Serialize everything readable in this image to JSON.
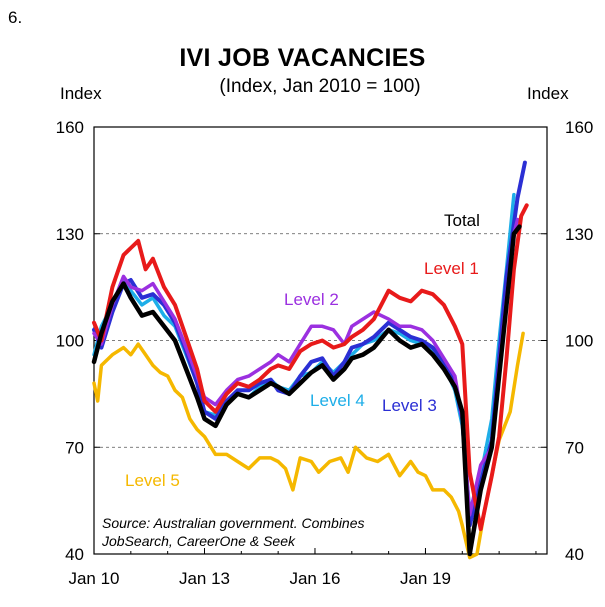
{
  "page": {
    "number": "6."
  },
  "chart_data": {
    "type": "line",
    "title": "IVI JOB VACANCIES",
    "subtitle": "(Index, Jan 2010 = 100)",
    "ylabel_left": "Index",
    "ylabel_right": "Index",
    "ylim": [
      40,
      160
    ],
    "yticks": [
      40,
      70,
      100,
      130,
      160
    ],
    "xlim": [
      2010.0,
      2022.3
    ],
    "xticks": [
      {
        "label": "Jan 10",
        "value": 2010
      },
      {
        "label": "Jan 13",
        "value": 2013
      },
      {
        "label": "Jan 16",
        "value": 2016
      },
      {
        "label": "Jan 19",
        "value": 2019
      }
    ],
    "source": [
      "Source: Australian government. Combines",
      "JobSearch, CareerOne & Seek"
    ],
    "series": [
      {
        "name": "Level 5",
        "label": "Level 5",
        "color": "#f5b800",
        "width": 3.5,
        "points": [
          [
            2010.0,
            88
          ],
          [
            2010.1,
            83
          ],
          [
            2010.2,
            93
          ],
          [
            2010.5,
            96
          ],
          [
            2010.8,
            98
          ],
          [
            2011.0,
            96
          ],
          [
            2011.2,
            99
          ],
          [
            2011.4,
            96
          ],
          [
            2011.6,
            93
          ],
          [
            2011.8,
            91
          ],
          [
            2012.0,
            90
          ],
          [
            2012.2,
            86
          ],
          [
            2012.4,
            84
          ],
          [
            2012.6,
            78
          ],
          [
            2012.8,
            75
          ],
          [
            2013.0,
            73
          ],
          [
            2013.3,
            68
          ],
          [
            2013.6,
            68
          ],
          [
            2013.9,
            66
          ],
          [
            2014.2,
            64
          ],
          [
            2014.5,
            67
          ],
          [
            2014.8,
            67
          ],
          [
            2015.0,
            66
          ],
          [
            2015.2,
            64
          ],
          [
            2015.4,
            58
          ],
          [
            2015.6,
            67
          ],
          [
            2015.9,
            66
          ],
          [
            2016.1,
            63
          ],
          [
            2016.4,
            66
          ],
          [
            2016.7,
            67
          ],
          [
            2016.9,
            63
          ],
          [
            2017.1,
            70
          ],
          [
            2017.4,
            67
          ],
          [
            2017.7,
            66
          ],
          [
            2018.0,
            68
          ],
          [
            2018.3,
            62
          ],
          [
            2018.6,
            66
          ],
          [
            2018.8,
            63
          ],
          [
            2019.0,
            62
          ],
          [
            2019.2,
            58
          ],
          [
            2019.5,
            58
          ],
          [
            2019.7,
            56
          ],
          [
            2019.9,
            52
          ],
          [
            2020.0,
            48
          ],
          [
            2020.2,
            39
          ],
          [
            2020.4,
            40
          ],
          [
            2020.6,
            52
          ],
          [
            2020.8,
            62
          ],
          [
            2021.0,
            72
          ],
          [
            2021.3,
            80
          ],
          [
            2021.5,
            93
          ],
          [
            2021.65,
            102
          ]
        ]
      },
      {
        "name": "Level 4",
        "label": "Level 4",
        "color": "#1eaee8",
        "width": 3.5,
        "points": [
          [
            2010.0,
            96
          ],
          [
            2010.2,
            104
          ],
          [
            2010.5,
            110
          ],
          [
            2010.8,
            117
          ],
          [
            2011.0,
            114
          ],
          [
            2011.3,
            110
          ],
          [
            2011.6,
            112
          ],
          [
            2011.9,
            107
          ],
          [
            2012.2,
            104
          ],
          [
            2012.5,
            96
          ],
          [
            2012.8,
            88
          ],
          [
            2013.0,
            80
          ],
          [
            2013.3,
            79
          ],
          [
            2013.6,
            83
          ],
          [
            2013.9,
            85
          ],
          [
            2014.2,
            84
          ],
          [
            2014.5,
            87
          ],
          [
            2014.8,
            89
          ],
          [
            2015.0,
            87
          ],
          [
            2015.3,
            86
          ],
          [
            2015.6,
            90
          ],
          [
            2015.9,
            91
          ],
          [
            2016.2,
            94
          ],
          [
            2016.5,
            91
          ],
          [
            2016.8,
            94
          ],
          [
            2017.0,
            96
          ],
          [
            2017.3,
            99
          ],
          [
            2017.6,
            100
          ],
          [
            2018.0,
            103
          ],
          [
            2018.3,
            102
          ],
          [
            2018.6,
            100
          ],
          [
            2018.9,
            99
          ],
          [
            2019.2,
            97
          ],
          [
            2019.5,
            93
          ],
          [
            2019.8,
            86
          ],
          [
            2020.0,
            76
          ],
          [
            2020.2,
            52
          ],
          [
            2020.5,
            62
          ],
          [
            2020.8,
            78
          ],
          [
            2021.0,
            100
          ],
          [
            2021.2,
            120
          ],
          [
            2021.4,
            141
          ]
        ]
      },
      {
        "name": "Level 3",
        "label": "Level 3",
        "color": "#2b2fd4",
        "width": 4,
        "points": [
          [
            2010.0,
            103
          ],
          [
            2010.2,
            98
          ],
          [
            2010.5,
            108
          ],
          [
            2010.8,
            116
          ],
          [
            2011.0,
            117
          ],
          [
            2011.3,
            112
          ],
          [
            2011.6,
            113
          ],
          [
            2011.9,
            110
          ],
          [
            2012.2,
            105
          ],
          [
            2012.5,
            97
          ],
          [
            2012.8,
            88
          ],
          [
            2013.0,
            80
          ],
          [
            2013.3,
            78
          ],
          [
            2013.6,
            83
          ],
          [
            2013.9,
            86
          ],
          [
            2014.2,
            86
          ],
          [
            2014.5,
            88
          ],
          [
            2014.8,
            89
          ],
          [
            2015.0,
            86
          ],
          [
            2015.3,
            85
          ],
          [
            2015.6,
            90
          ],
          [
            2015.9,
            94
          ],
          [
            2016.2,
            95
          ],
          [
            2016.5,
            90
          ],
          [
            2016.8,
            94
          ],
          [
            2017.0,
            98
          ],
          [
            2017.3,
            99
          ],
          [
            2017.6,
            101
          ],
          [
            2018.0,
            105
          ],
          [
            2018.3,
            103
          ],
          [
            2018.6,
            101
          ],
          [
            2018.9,
            100
          ],
          [
            2019.2,
            98
          ],
          [
            2019.5,
            94
          ],
          [
            2019.8,
            88
          ],
          [
            2020.0,
            78
          ],
          [
            2020.2,
            48
          ],
          [
            2020.5,
            60
          ],
          [
            2020.8,
            72
          ],
          [
            2021.0,
            95
          ],
          [
            2021.2,
            118
          ],
          [
            2021.5,
            140
          ],
          [
            2021.7,
            150
          ]
        ]
      },
      {
        "name": "Level 2",
        "label": "Level 2",
        "color": "#9b30e0",
        "width": 3.5,
        "points": [
          [
            2010.0,
            102
          ],
          [
            2010.2,
            99
          ],
          [
            2010.5,
            110
          ],
          [
            2010.8,
            118
          ],
          [
            2011.0,
            115
          ],
          [
            2011.3,
            114
          ],
          [
            2011.6,
            116
          ],
          [
            2011.9,
            111
          ],
          [
            2012.2,
            106
          ],
          [
            2012.5,
            98
          ],
          [
            2012.8,
            90
          ],
          [
            2013.0,
            84
          ],
          [
            2013.3,
            82
          ],
          [
            2013.6,
            86
          ],
          [
            2013.9,
            89
          ],
          [
            2014.2,
            90
          ],
          [
            2014.5,
            92
          ],
          [
            2014.8,
            94
          ],
          [
            2015.0,
            96
          ],
          [
            2015.3,
            94
          ],
          [
            2015.6,
            99
          ],
          [
            2015.9,
            104
          ],
          [
            2016.2,
            104
          ],
          [
            2016.5,
            103
          ],
          [
            2016.8,
            99
          ],
          [
            2017.0,
            104
          ],
          [
            2017.3,
            106
          ],
          [
            2017.6,
            108
          ],
          [
            2018.0,
            106
          ],
          [
            2018.3,
            104
          ],
          [
            2018.6,
            104
          ],
          [
            2018.9,
            103
          ],
          [
            2019.2,
            100
          ],
          [
            2019.5,
            95
          ],
          [
            2019.8,
            90
          ],
          [
            2020.0,
            78
          ],
          [
            2020.2,
            51
          ],
          [
            2020.5,
            65
          ],
          [
            2020.8,
            70
          ],
          [
            2021.0,
            92
          ],
          [
            2021.2,
            112
          ],
          [
            2021.4,
            130
          ],
          [
            2021.5,
            134
          ]
        ]
      },
      {
        "name": "Level 1",
        "label": "Level 1",
        "color": "#e81a1a",
        "width": 4,
        "points": [
          [
            2010.0,
            105
          ],
          [
            2010.2,
            100
          ],
          [
            2010.5,
            115
          ],
          [
            2010.8,
            124
          ],
          [
            2011.0,
            126
          ],
          [
            2011.2,
            128
          ],
          [
            2011.4,
            120
          ],
          [
            2011.6,
            123
          ],
          [
            2011.9,
            115
          ],
          [
            2012.2,
            110
          ],
          [
            2012.5,
            101
          ],
          [
            2012.8,
            92
          ],
          [
            2013.0,
            83
          ],
          [
            2013.3,
            80
          ],
          [
            2013.6,
            85
          ],
          [
            2013.9,
            88
          ],
          [
            2014.2,
            87
          ],
          [
            2014.5,
            89
          ],
          [
            2014.8,
            92
          ],
          [
            2015.0,
            93
          ],
          [
            2015.3,
            92
          ],
          [
            2015.6,
            97
          ],
          [
            2015.9,
            99
          ],
          [
            2016.2,
            100
          ],
          [
            2016.5,
            98
          ],
          [
            2016.8,
            99
          ],
          [
            2017.0,
            101
          ],
          [
            2017.3,
            103
          ],
          [
            2017.6,
            106
          ],
          [
            2018.0,
            114
          ],
          [
            2018.3,
            112
          ],
          [
            2018.6,
            111
          ],
          [
            2018.9,
            114
          ],
          [
            2019.2,
            113
          ],
          [
            2019.5,
            110
          ],
          [
            2019.8,
            104
          ],
          [
            2020.0,
            99
          ],
          [
            2020.2,
            63
          ],
          [
            2020.5,
            47
          ],
          [
            2020.8,
            62
          ],
          [
            2021.0,
            73
          ],
          [
            2021.2,
            95
          ],
          [
            2021.4,
            120
          ],
          [
            2021.6,
            135
          ],
          [
            2021.75,
            138
          ]
        ]
      },
      {
        "name": "Total",
        "label": "Total",
        "color": "#000000",
        "width": 4.5,
        "points": [
          [
            2010.0,
            94
          ],
          [
            2010.2,
            102
          ],
          [
            2010.5,
            111
          ],
          [
            2010.8,
            116
          ],
          [
            2011.0,
            112
          ],
          [
            2011.3,
            107
          ],
          [
            2011.6,
            108
          ],
          [
            2011.9,
            104
          ],
          [
            2012.2,
            100
          ],
          [
            2012.5,
            92
          ],
          [
            2012.8,
            84
          ],
          [
            2013.0,
            78
          ],
          [
            2013.3,
            76
          ],
          [
            2013.6,
            82
          ],
          [
            2013.9,
            85
          ],
          [
            2014.2,
            84
          ],
          [
            2014.5,
            86
          ],
          [
            2014.8,
            88
          ],
          [
            2015.0,
            87
          ],
          [
            2015.3,
            85
          ],
          [
            2015.6,
            88
          ],
          [
            2015.9,
            91
          ],
          [
            2016.2,
            93
          ],
          [
            2016.5,
            89
          ],
          [
            2016.8,
            92
          ],
          [
            2017.0,
            95
          ],
          [
            2017.3,
            96
          ],
          [
            2017.6,
            98
          ],
          [
            2018.0,
            103
          ],
          [
            2018.3,
            100
          ],
          [
            2018.6,
            98
          ],
          [
            2018.9,
            99
          ],
          [
            2019.2,
            96
          ],
          [
            2019.5,
            92
          ],
          [
            2019.8,
            87
          ],
          [
            2020.0,
            80
          ],
          [
            2020.2,
            40
          ],
          [
            2020.5,
            58
          ],
          [
            2020.8,
            70
          ],
          [
            2021.0,
            90
          ],
          [
            2021.2,
            110
          ],
          [
            2021.4,
            130
          ],
          [
            2021.55,
            132
          ]
        ]
      }
    ]
  }
}
